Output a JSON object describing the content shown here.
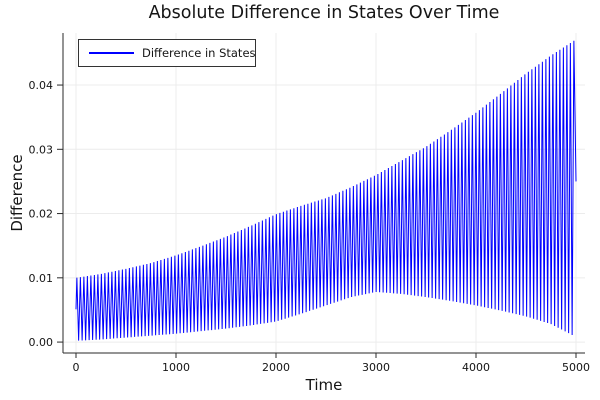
{
  "figure": {
    "background": "#ffffff",
    "text_color": "#151515",
    "axis_color": "#2a2a2a",
    "grid_color": "#ececec"
  },
  "chart_data": {
    "type": "line",
    "title": "Absolute Difference in States Over Time",
    "xlabel": "Time",
    "ylabel": "Difference",
    "x_ticks": {
      "values": [
        0,
        1000,
        2000,
        3000,
        4000,
        5000
      ],
      "labels": [
        "0",
        "1000",
        "2000",
        "3000",
        "4000",
        "5000"
      ]
    },
    "y_ticks": {
      "values": [
        0,
        0.01,
        0.02,
        0.03,
        0.04
      ],
      "labels": [
        "0.00",
        "0.01",
        "0.02",
        "0.03",
        "0.04"
      ]
    },
    "xlim": [
      -130,
      5090
    ],
    "ylim": [
      -0.0017,
      0.0481
    ],
    "grid": true,
    "legend": {
      "position": "top-left",
      "entries": [
        {
          "label": "Difference in States",
          "color": "#0000ff"
        }
      ]
    },
    "series": [
      {
        "name": "Difference in States",
        "color": "#0000ff",
        "line_width": 1,
        "oscillation_period": 35,
        "t_end": 5000,
        "end_value": 0.025,
        "envelope_t": [
          0,
          250,
          500,
          750,
          1000,
          1250,
          1500,
          1750,
          2000,
          2250,
          2500,
          2750,
          3000,
          3250,
          3500,
          3750,
          4000,
          4250,
          4500,
          4750,
          5000
        ],
        "envelope_upper": [
          0.01,
          0.0106,
          0.0114,
          0.0123,
          0.0135,
          0.0149,
          0.0164,
          0.0181,
          0.0199,
          0.0212,
          0.0224,
          0.0241,
          0.026,
          0.0282,
          0.0304,
          0.033,
          0.0357,
          0.0387,
          0.0418,
          0.0446,
          0.0471
        ],
        "envelope_lower": [
          0.0002,
          0.0004,
          0.0007,
          0.001,
          0.0013,
          0.0017,
          0.0021,
          0.0026,
          0.0032,
          0.0044,
          0.0057,
          0.007,
          0.0078,
          0.0075,
          0.007,
          0.0064,
          0.0057,
          0.0049,
          0.004,
          0.0028,
          0.0008
        ]
      }
    ]
  }
}
